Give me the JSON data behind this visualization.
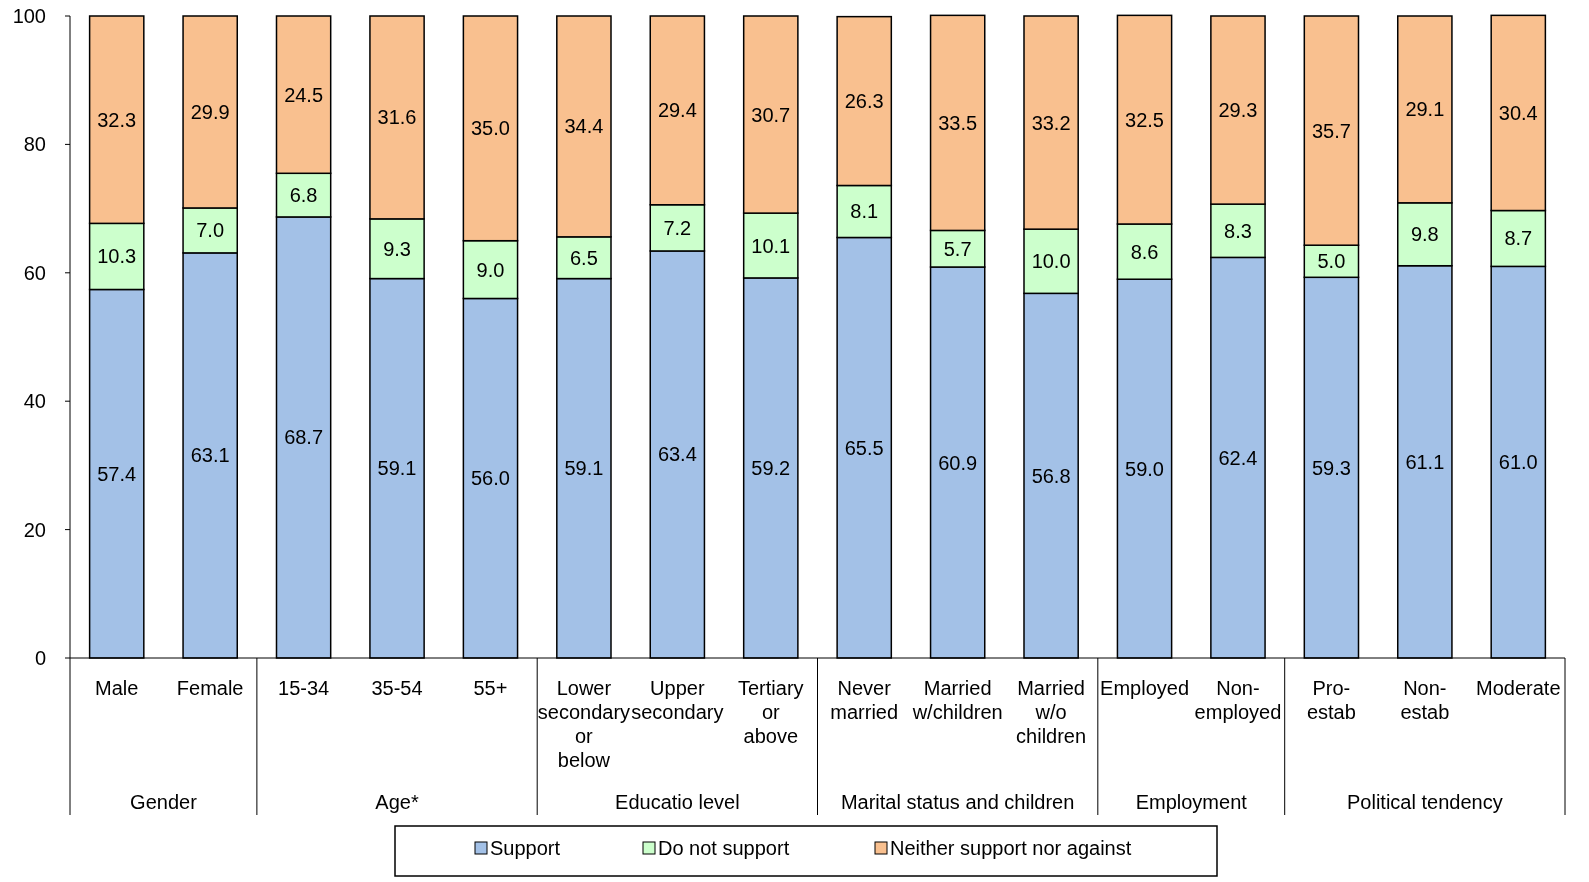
{
  "chart_data": {
    "type": "bar",
    "stacked": true,
    "categories": [
      "Male",
      "Female",
      "15-34",
      "35-54",
      "55+",
      "Lower secondary or below",
      "Upper secondary",
      "Tertiary or above",
      "Never married",
      "Married w/children",
      "Married w/o children",
      "Employed",
      "Non-employed",
      "Pro-estab",
      "Non-estab",
      "Moderate"
    ],
    "series": [
      {
        "name": "Support",
        "color": "#a3c1e7",
        "values": [
          57.4,
          63.1,
          68.7,
          59.1,
          56.0,
          59.1,
          63.4,
          59.2,
          65.5,
          60.9,
          56.8,
          59.0,
          62.4,
          59.3,
          61.1,
          61.0
        ],
        "value_labels": [
          "57.4",
          "63.1",
          "68.7",
          "59.1",
          "56.0",
          "59.1",
          "63.4",
          "59.2",
          "65.5",
          "60.9",
          "56.8",
          "59.0",
          "62.4",
          "59.3",
          "61.1",
          "61.0"
        ]
      },
      {
        "name": "Do not support",
        "color": "#ccffcc",
        "values": [
          10.3,
          7.0,
          6.8,
          9.3,
          9.0,
          6.5,
          7.2,
          10.1,
          8.1,
          5.7,
          10.0,
          8.6,
          8.3,
          5.0,
          9.8,
          8.7
        ],
        "value_labels": [
          "10.3",
          "7.0",
          "6.8",
          "9.3",
          "9.0",
          "6.5",
          "7.2",
          "10.1",
          "8.1",
          "5.7",
          "10.0",
          "8.6",
          "8.3",
          "5.0",
          "9.8",
          "8.7"
        ]
      },
      {
        "name": "Neither support nor against",
        "color": "#f9c08f",
        "values": [
          32.3,
          29.9,
          24.5,
          31.6,
          35.0,
          34.4,
          29.4,
          30.7,
          26.3,
          33.5,
          33.2,
          32.5,
          29.3,
          35.7,
          29.1,
          30.4
        ],
        "value_labels": [
          "32.3",
          "29.9",
          "24.5",
          "31.6",
          "35.0",
          "34.4",
          "29.4",
          "30.7",
          "26.3",
          "33.5",
          "33.2",
          "32.5",
          "29.3",
          "35.7",
          "29.1",
          "30.4"
        ]
      }
    ],
    "ylim": [
      0,
      100
    ],
    "yticks": [
      0,
      20,
      40,
      60,
      80,
      100
    ],
    "legend": "bottom",
    "annotations": [
      "Gender",
      "Age*",
      "Educatio level",
      "Marital status and children",
      "Employment",
      "Political tendency"
    ]
  }
}
